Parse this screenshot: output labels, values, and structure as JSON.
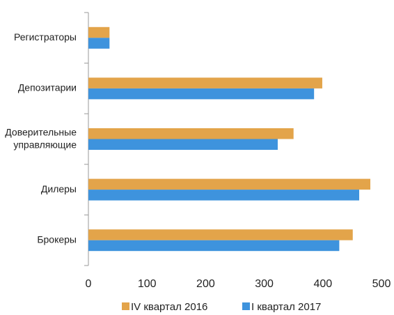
{
  "chart_data": {
    "type": "hbar",
    "categories": [
      "Регистраторы",
      "Депозитарии",
      "Доверительные\nуправляющие",
      "Дилеры",
      "Брокеры"
    ],
    "series": [
      {
        "name": "IV квартал 2016",
        "color": "#e3a44a",
        "values": [
          36,
          399,
          350,
          481,
          451
        ]
      },
      {
        "name": "I квартал 2017",
        "color": "#3e93dd",
        "values": [
          36,
          385,
          323,
          462,
          428
        ]
      }
    ],
    "xlim": [
      0,
      500
    ],
    "xticks": [
      0,
      100,
      200,
      300,
      400,
      500
    ],
    "grid": false,
    "legend": "bottom"
  }
}
